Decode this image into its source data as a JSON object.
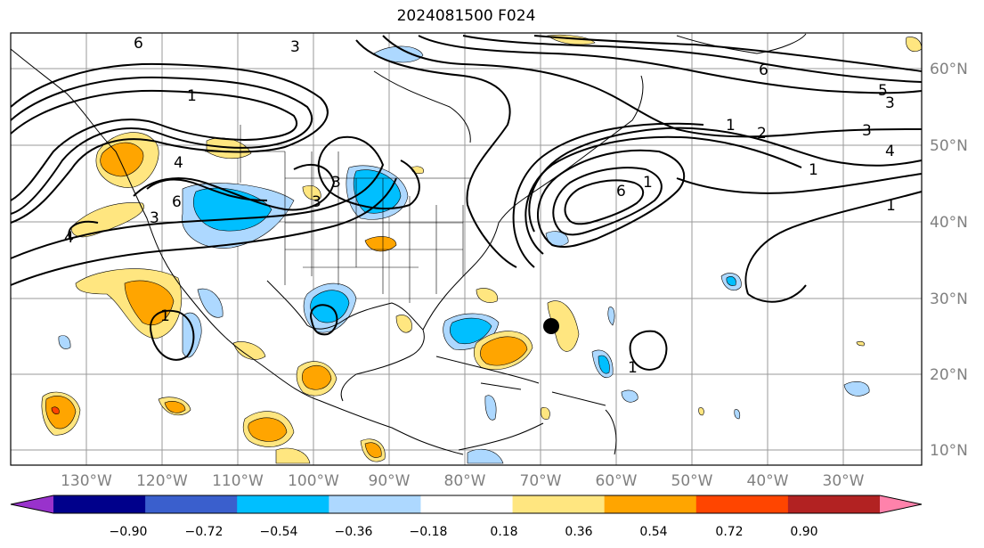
{
  "title": "2024081500 F024",
  "map": {
    "lon_ticks": [
      "130°W",
      "120°W",
      "110°W",
      "100°W",
      "90°W",
      "80°W",
      "70°W",
      "60°W",
      "50°W",
      "40°W",
      "30°W"
    ],
    "lat_ticks": [
      "60°N",
      "50°N",
      "40°N",
      "30°N",
      "20°N",
      "10°N"
    ],
    "contour_labels": [
      "6",
      "3",
      "1",
      "4",
      "6",
      "3",
      "3",
      "3",
      "1",
      "2",
      "3",
      "4",
      "5",
      "3",
      "6",
      "1",
      "1",
      "6",
      "1",
      "1",
      "1",
      "4"
    ],
    "marker": "storm-center-dot"
  },
  "colorbar": {
    "labels": [
      "−0.90",
      "−0.72",
      "−0.54",
      "−0.36",
      "−0.18",
      "0.18",
      "0.36",
      "0.54",
      "0.72",
      "0.90"
    ],
    "colors": [
      "#9932cc",
      "#00008b",
      "#3a5fcd",
      "#00bfff",
      "#add8ff",
      "#ffffff",
      "#ffe680",
      "#ffa500",
      "#ff4500",
      "#b22222",
      "#ff82ab"
    ],
    "extend": "both"
  }
}
